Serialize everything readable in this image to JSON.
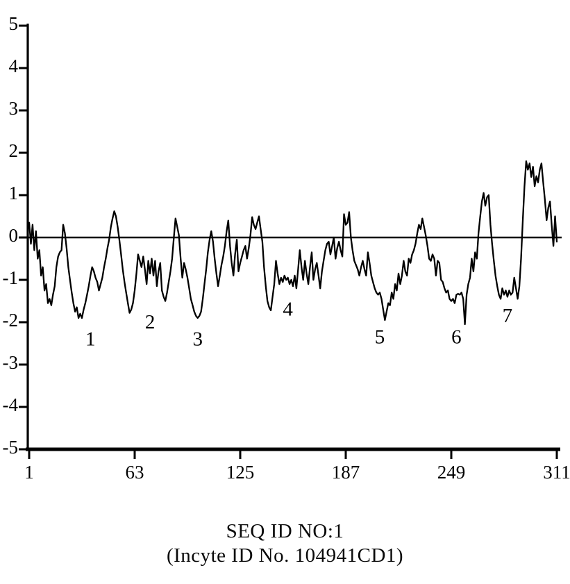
{
  "figure": {
    "caption_line1": "SEQ ID NO:1",
    "caption_line2": "(Incyte ID No. 104941CD1)"
  },
  "chart_data": {
    "type": "line",
    "title": "",
    "xlabel": "",
    "ylabel": "",
    "xlim": [
      1,
      311
    ],
    "ylim": [
      -5,
      5
    ],
    "x_ticks": [
      1,
      63,
      125,
      187,
      249,
      311
    ],
    "y_ticks": [
      5,
      4,
      3,
      2,
      1,
      0,
      -1,
      -2,
      -3,
      -4,
      -5
    ],
    "grid": false,
    "legend": "none",
    "zero_line": true,
    "line_color": "#000000",
    "background_color": "#ffffff",
    "annotations": [
      {
        "label": "1",
        "x": 37,
        "y": -2.4
      },
      {
        "label": "2",
        "x": 72,
        "y": -2.0
      },
      {
        "label": "3",
        "x": 100,
        "y": -2.4
      },
      {
        "label": "4",
        "x": 153,
        "y": -1.7
      },
      {
        "label": "5",
        "x": 207,
        "y": -2.35
      },
      {
        "label": "6",
        "x": 252,
        "y": -2.35
      },
      {
        "label": "7",
        "x": 282,
        "y": -1.85
      }
    ],
    "series": [
      {
        "name": "hydropathy-profile",
        "x_start": 1,
        "x_step": 1,
        "values": [
          0.35,
          -0.15,
          0.3,
          -0.3,
          0.15,
          -0.5,
          -0.3,
          -0.9,
          -0.7,
          -1.25,
          -1.1,
          -1.55,
          -1.45,
          -1.6,
          -1.35,
          -1.15,
          -0.7,
          -0.45,
          -0.35,
          -0.3,
          0.3,
          0.1,
          -0.25,
          -0.7,
          -1.0,
          -1.3,
          -1.55,
          -1.75,
          -1.65,
          -1.9,
          -1.8,
          -1.9,
          -1.7,
          -1.55,
          -1.35,
          -1.15,
          -0.9,
          -0.7,
          -0.8,
          -0.95,
          -1.05,
          -1.25,
          -1.1,
          -0.95,
          -0.7,
          -0.5,
          -0.25,
          -0.05,
          0.25,
          0.45,
          0.62,
          0.5,
          0.25,
          -0.05,
          -0.4,
          -0.75,
          -1.05,
          -1.3,
          -1.55,
          -1.78,
          -1.7,
          -1.55,
          -1.25,
          -0.85,
          -0.4,
          -0.55,
          -0.7,
          -0.45,
          -0.75,
          -1.1,
          -0.55,
          -0.85,
          -0.5,
          -0.9,
          -0.55,
          -1.15,
          -0.8,
          -0.6,
          -1.25,
          -1.4,
          -1.5,
          -1.3,
          -1.05,
          -0.8,
          -0.5,
          0.0,
          0.45,
          0.25,
          0.05,
          -0.5,
          -0.95,
          -0.6,
          -0.75,
          -0.95,
          -1.2,
          -1.45,
          -1.6,
          -1.75,
          -1.85,
          -1.9,
          -1.85,
          -1.75,
          -1.45,
          -1.1,
          -0.75,
          -0.35,
          -0.05,
          0.15,
          -0.1,
          -0.5,
          -0.85,
          -1.15,
          -0.9,
          -0.65,
          -0.45,
          -0.2,
          0.15,
          0.4,
          -0.2,
          -0.6,
          -0.9,
          -0.4,
          -0.05,
          -0.8,
          -0.6,
          -0.45,
          -0.3,
          -0.2,
          -0.5,
          -0.25,
          0.05,
          0.48,
          0.3,
          0.2,
          0.35,
          0.5,
          0.2,
          -0.1,
          -0.7,
          -1.15,
          -1.5,
          -1.65,
          -1.72,
          -1.4,
          -1.1,
          -0.55,
          -0.85,
          -1.1,
          -0.95,
          -1.05,
          -0.9,
          -1.0,
          -0.95,
          -1.1,
          -1.0,
          -1.15,
          -0.9,
          -1.2,
          -0.75,
          -0.3,
          -0.7,
          -1.0,
          -0.55,
          -0.85,
          -1.1,
          -0.7,
          -0.35,
          -1.0,
          -0.75,
          -0.6,
          -0.9,
          -1.2,
          -0.8,
          -0.55,
          -0.3,
          -0.15,
          -0.1,
          -0.4,
          -0.2,
          0.0,
          -0.5,
          -0.25,
          -0.1,
          -0.3,
          -0.45,
          0.55,
          0.3,
          0.35,
          0.6,
          0.0,
          -0.3,
          -0.55,
          -0.65,
          -0.75,
          -0.9,
          -0.7,
          -0.55,
          -0.75,
          -0.9,
          -0.35,
          -0.6,
          -0.9,
          -1.05,
          -1.2,
          -1.3,
          -1.35,
          -1.3,
          -1.45,
          -1.7,
          -1.95,
          -1.75,
          -1.55,
          -1.6,
          -1.3,
          -1.45,
          -1.1,
          -1.25,
          -0.85,
          -1.1,
          -0.9,
          -0.55,
          -0.8,
          -0.9,
          -0.5,
          -0.6,
          -0.4,
          -0.3,
          -0.15,
          0.1,
          0.3,
          0.2,
          0.45,
          0.25,
          0.05,
          -0.2,
          -0.5,
          -0.55,
          -0.4,
          -0.5,
          -0.9,
          -0.55,
          -0.6,
          -1.0,
          -1.05,
          -1.2,
          -1.3,
          -1.25,
          -1.45,
          -1.5,
          -1.45,
          -1.55,
          -1.35,
          -1.33,
          -1.35,
          -1.3,
          -1.45,
          -2.05,
          -1.35,
          -1.1,
          -0.95,
          -0.5,
          -0.8,
          -0.35,
          -0.5,
          0.1,
          0.5,
          0.85,
          1.05,
          0.75,
          0.95,
          1.0,
          0.3,
          -0.15,
          -0.55,
          -0.9,
          -1.15,
          -1.35,
          -1.45,
          -1.2,
          -1.35,
          -1.25,
          -1.4,
          -1.25,
          -1.35,
          -1.3,
          -0.95,
          -1.2,
          -1.45,
          -1.15,
          -0.5,
          0.4,
          1.2,
          1.8,
          1.6,
          1.75,
          1.43,
          1.67,
          1.21,
          1.45,
          1.3,
          1.6,
          1.75,
          1.3,
          0.9,
          0.41,
          0.7,
          0.85,
          0.3,
          -0.2,
          0.5,
          -0.1
        ]
      }
    ]
  }
}
